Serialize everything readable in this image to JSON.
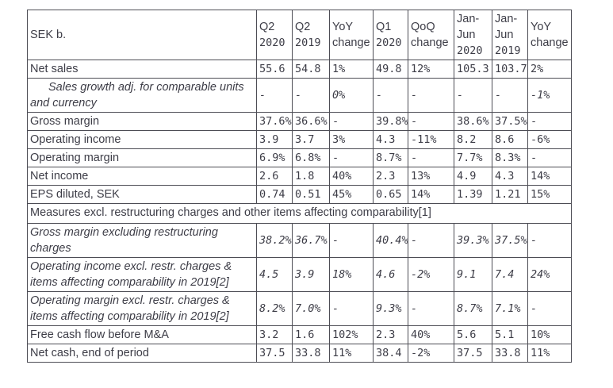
{
  "colors": {
    "background": "#ffffff",
    "text": "#3d3d47",
    "border": "#4d4d55"
  },
  "table": {
    "columns": [
      {
        "id": "metric",
        "header": "SEK b."
      },
      {
        "id": "q2-2020",
        "header": "Q2 2020"
      },
      {
        "id": "q2-2019",
        "header": "Q2 2019"
      },
      {
        "id": "yoy-change",
        "header": "YoY change"
      },
      {
        "id": "q1-2020",
        "header": "Q1 2020"
      },
      {
        "id": "qoq-change",
        "header": "QoQ change"
      },
      {
        "id": "jan-jun-2020",
        "header": "Jan-Jun 2020"
      },
      {
        "id": "jan-jun-2019",
        "header": "Jan-Jun 2019"
      },
      {
        "id": "yoy-change-h1",
        "header": "YoY change"
      }
    ],
    "rows": [
      {
        "type": "data",
        "style": "regular",
        "label": "Net sales",
        "values": [
          "55.6",
          "54.8",
          "1%",
          "49.8",
          "12%",
          "105.3",
          "103.7",
          "2%"
        ]
      },
      {
        "type": "data",
        "style": "italic",
        "indent": true,
        "tall": true,
        "label": "Sales growth adj. for comparable units and currency",
        "values": [
          "-",
          "-",
          "0%",
          "-",
          "-",
          "-",
          "-",
          "-1%"
        ]
      },
      {
        "type": "data",
        "style": "regular",
        "label": "Gross margin",
        "values": [
          "37.6%",
          "36.6%",
          "-",
          "39.8%",
          "-",
          "38.6%",
          "37.5%",
          "-"
        ]
      },
      {
        "type": "data",
        "style": "regular",
        "label": "Operating income",
        "values": [
          "3.9",
          "3.7",
          "3%",
          "4.3",
          "-11%",
          "8.2",
          "8.6",
          "-6%"
        ]
      },
      {
        "type": "data",
        "style": "regular",
        "label": "Operating margin",
        "values": [
          "6.9%",
          "6.8%",
          "-",
          "8.7%",
          "-",
          "7.7%",
          "8.3%",
          "-"
        ]
      },
      {
        "type": "data",
        "style": "regular",
        "label": "Net income",
        "values": [
          "2.6",
          "1.8",
          "40%",
          "2.3",
          "13%",
          "4.9",
          "4.3",
          "14%"
        ]
      },
      {
        "type": "data",
        "style": "regular",
        "label": "EPS diluted, SEK",
        "values": [
          "0.74",
          "0.51",
          "45%",
          "0.65",
          "14%",
          "1.39",
          "1.21",
          "15%"
        ]
      },
      {
        "type": "section",
        "label": "Measures excl. restructuring charges and other items affecting comparability[1]"
      },
      {
        "type": "data",
        "style": "italic",
        "tall": true,
        "label": "Gross margin excluding restructuring charges",
        "values": [
          "38.2%",
          "36.7%",
          "-",
          "40.4%",
          "-",
          "39.3%",
          "37.5%",
          "-"
        ]
      },
      {
        "type": "data",
        "style": "italic",
        "tall": true,
        "label": "Operating income excl. restr. charges & items affecting comparability in 2019[2]",
        "values": [
          "4.5",
          "3.9",
          "18%",
          "4.6",
          "-2%",
          "9.1",
          "7.4",
          "24%"
        ]
      },
      {
        "type": "data",
        "style": "italic",
        "tall": true,
        "label": "Operating margin excl. restr. charges & items affecting comparability in 2019[2]",
        "values": [
          "8.2%",
          "7.0%",
          "-",
          "9.3%",
          "-",
          "8.7%",
          "7.1%",
          "-"
        ]
      },
      {
        "type": "data",
        "style": "regular",
        "label": "Free cash flow before M&A",
        "values": [
          "3.2",
          "1.6",
          "102%",
          "2.3",
          "40%",
          "5.6",
          "5.1",
          "10%"
        ]
      },
      {
        "type": "data",
        "style": "regular",
        "label": "Net cash, end of period",
        "values": [
          "37.5",
          "33.8",
          "11%",
          "38.4",
          "-2%",
          "37.5",
          "33.8",
          "11%"
        ]
      }
    ]
  }
}
